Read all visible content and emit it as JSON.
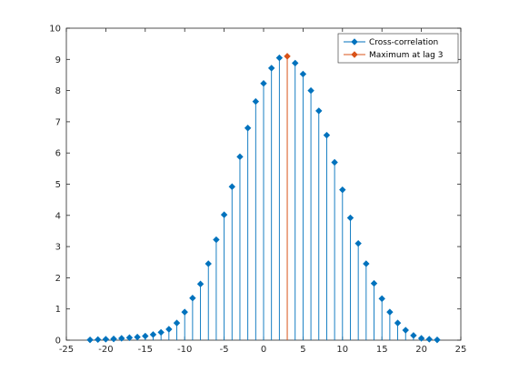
{
  "chart_data": {
    "type": "stem",
    "title": "",
    "xlabel": "",
    "ylabel": "",
    "xlim": [
      -25,
      25
    ],
    "ylim": [
      0,
      10
    ],
    "xticks": [
      -25,
      -20,
      -15,
      -10,
      -5,
      0,
      5,
      10,
      15,
      20,
      25
    ],
    "yticks": [
      0,
      1,
      2,
      3,
      4,
      5,
      6,
      7,
      8,
      9,
      10
    ],
    "grid": false,
    "legend_position": "top-right",
    "series": [
      {
        "name": "Cross-correlation",
        "color": "#0072BD",
        "x": [
          -22,
          -21,
          -20,
          -19,
          -18,
          -17,
          -16,
          -15,
          -14,
          -13,
          -12,
          -11,
          -10,
          -9,
          -8,
          -7,
          -6,
          -5,
          -4,
          -3,
          -2,
          -1,
          0,
          1,
          2,
          3,
          4,
          5,
          6,
          7,
          8,
          9,
          10,
          11,
          12,
          13,
          14,
          15,
          16,
          17,
          18,
          19,
          20,
          21,
          22
        ],
        "y": [
          0.01,
          0.02,
          0.03,
          0.04,
          0.06,
          0.08,
          0.1,
          0.13,
          0.18,
          0.25,
          0.35,
          0.55,
          0.9,
          1.35,
          1.8,
          2.45,
          3.22,
          4.02,
          4.92,
          5.88,
          6.8,
          7.65,
          8.23,
          8.72,
          9.05,
          9.1,
          8.88,
          8.53,
          8.0,
          7.35,
          6.57,
          5.7,
          4.82,
          3.92,
          3.1,
          2.45,
          1.82,
          1.33,
          0.9,
          0.55,
          0.32,
          0.15,
          0.06,
          0.03,
          0.01
        ]
      },
      {
        "name": "Maximum at lag 3",
        "color": "#D95319",
        "x": [
          3
        ],
        "y": [
          9.1
        ]
      }
    ]
  }
}
